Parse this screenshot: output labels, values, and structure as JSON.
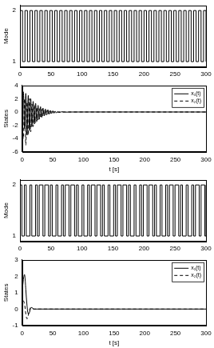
{
  "chart_data": [
    {
      "type": "step",
      "ylabel": "Mode",
      "xlim": [
        0,
        300
      ],
      "xticks": [
        0,
        50,
        100,
        150,
        200,
        250,
        300
      ],
      "ylim": [
        0.9,
        2.1
      ],
      "yticks": [
        1,
        2
      ],
      "grid": false,
      "color": "#000000",
      "line_style": "solid",
      "x": [
        0,
        4,
        8,
        12,
        16,
        20,
        24,
        28,
        32,
        36,
        40,
        44,
        48,
        52,
        56,
        60,
        64,
        68,
        72,
        76,
        80,
        84,
        88,
        92,
        96,
        100,
        104,
        108,
        112,
        116,
        120,
        124,
        128,
        132,
        136,
        140,
        144,
        148,
        152,
        156,
        160,
        164,
        168,
        172,
        176,
        180,
        184,
        188,
        192,
        196,
        200,
        204,
        208,
        212,
        216,
        220,
        224,
        228,
        232,
        236,
        240,
        244,
        248,
        252,
        256,
        260,
        264,
        268,
        272,
        276,
        280,
        284,
        288,
        292,
        296,
        300
      ],
      "values": [
        2,
        1,
        2,
        1,
        2,
        1,
        2,
        1,
        2,
        1,
        2,
        1,
        2,
        1,
        2,
        1,
        2,
        1,
        2,
        1,
        2,
        1,
        2,
        1,
        2,
        1,
        2,
        1,
        2,
        1,
        2,
        1,
        2,
        1,
        2,
        1,
        2,
        1,
        2,
        1,
        2,
        1,
        2,
        1,
        2,
        1,
        2,
        1,
        2,
        1,
        2,
        1,
        2,
        1,
        2,
        1,
        2,
        1,
        2,
        1,
        2,
        1,
        2,
        1,
        2,
        1,
        2,
        1,
        2,
        1,
        2,
        1,
        2,
        1,
        2,
        1
      ]
    },
    {
      "type": "line",
      "ylabel": "States",
      "xlabel": "t [s]",
      "xlim": [
        0,
        300
      ],
      "xticks": [
        0,
        50,
        100,
        150,
        200,
        250,
        300
      ],
      "ylim": [
        -6,
        4
      ],
      "yticks": [
        -6,
        -4,
        -2,
        0,
        2,
        4
      ],
      "grid": false,
      "legend": "upper right",
      "x": [
        0,
        2,
        4,
        6,
        8,
        10,
        12,
        14,
        16,
        18,
        20,
        22,
        24,
        26,
        28,
        30,
        32,
        34,
        36,
        38,
        40,
        42,
        44,
        46,
        48,
        50,
        52,
        54,
        56,
        58,
        60,
        65,
        70,
        80,
        300
      ],
      "series": [
        {
          "name": "x₁(t)",
          "color": "#000000",
          "line_style": "solid",
          "values": [
            1,
            3,
            -2.5,
            2.8,
            -3.5,
            2.5,
            -2.8,
            2,
            -2.2,
            1.6,
            -1.8,
            1.3,
            -1.4,
            1,
            -1.1,
            0.8,
            -0.8,
            0.6,
            -0.6,
            0.45,
            -0.45,
            0.35,
            -0.35,
            0.25,
            -0.25,
            0.18,
            -0.18,
            0.12,
            -0.12,
            0.08,
            -0.08,
            0.04,
            -0.02,
            0,
            0
          ]
        },
        {
          "name": "x₂(t)",
          "color": "#000000",
          "line_style": "dashed",
          "values": [
            -1,
            -4,
            2,
            -5,
            1.5,
            -3.5,
            2,
            -3,
            1.2,
            -2.2,
            1,
            -1.6,
            0.7,
            -1.2,
            0.5,
            -0.9,
            0.4,
            -0.6,
            0.3,
            -0.45,
            0.2,
            -0.3,
            0.15,
            -0.22,
            0.1,
            -0.15,
            0.07,
            -0.1,
            0.05,
            -0.07,
            0.03,
            -0.03,
            0.01,
            0,
            0
          ]
        }
      ]
    },
    {
      "type": "step",
      "ylabel": "Mode",
      "xlim": [
        0,
        300
      ],
      "xticks": [
        0,
        50,
        100,
        150,
        200,
        250,
        300
      ],
      "ylim": [
        0.9,
        2.1
      ],
      "yticks": [
        1,
        2
      ],
      "grid": false,
      "color": "#000000",
      "line_style": "solid",
      "x": [
        0,
        3,
        7,
        10,
        16,
        19,
        25,
        28,
        31,
        37,
        40,
        46,
        49,
        52,
        58,
        61,
        67,
        70,
        73,
        79,
        82,
        88,
        91,
        94,
        100,
        103,
        109,
        112,
        115,
        121,
        124,
        130,
        133,
        136,
        142,
        145,
        151,
        154,
        157,
        163,
        166,
        172,
        175,
        178,
        184,
        187,
        193,
        196,
        199,
        205,
        208,
        214,
        217,
        220,
        226,
        229,
        235,
        238,
        241,
        247,
        250,
        256,
        259,
        262,
        268,
        271,
        277,
        280,
        283,
        289,
        292,
        298,
        300
      ],
      "values": [
        2,
        1,
        2,
        1,
        2,
        1,
        2,
        1,
        2,
        1,
        2,
        1,
        2,
        1,
        2,
        1,
        2,
        1,
        2,
        1,
        2,
        1,
        2,
        1,
        2,
        1,
        2,
        1,
        2,
        1,
        2,
        1,
        2,
        1,
        2,
        1,
        2,
        1,
        2,
        1,
        2,
        1,
        2,
        1,
        2,
        1,
        2,
        1,
        2,
        1,
        2,
        1,
        2,
        1,
        2,
        1,
        2,
        1,
        2,
        1,
        2,
        1,
        2,
        1,
        2,
        1,
        2,
        1,
        2,
        1,
        2,
        1,
        2
      ]
    },
    {
      "type": "line",
      "ylabel": "States",
      "xlabel": "t [s]",
      "xlim": [
        0,
        300
      ],
      "xticks": [
        0,
        50,
        100,
        150,
        200,
        250,
        300
      ],
      "ylim": [
        -1,
        3
      ],
      "yticks": [
        -1,
        0,
        1,
        2,
        3
      ],
      "grid": false,
      "legend": "upper right",
      "x": [
        0,
        2,
        4,
        6,
        8,
        10,
        12,
        14,
        16,
        18,
        20,
        25,
        300
      ],
      "series": [
        {
          "name": "x₁(t)",
          "color": "#000000",
          "line_style": "solid",
          "values": [
            1,
            1.8,
            2.1,
            1.2,
            0.2,
            -0.3,
            -0.2,
            0.05,
            0.1,
            0.02,
            0,
            0,
            0
          ]
        },
        {
          "name": "x₂(t)",
          "color": "#000000",
          "line_style": "dashed",
          "values": [
            -0.2,
            0.5,
            0.3,
            -0.3,
            -0.6,
            -0.4,
            -0.05,
            0.1,
            0.05,
            0,
            0,
            0,
            0
          ]
        }
      ]
    }
  ]
}
